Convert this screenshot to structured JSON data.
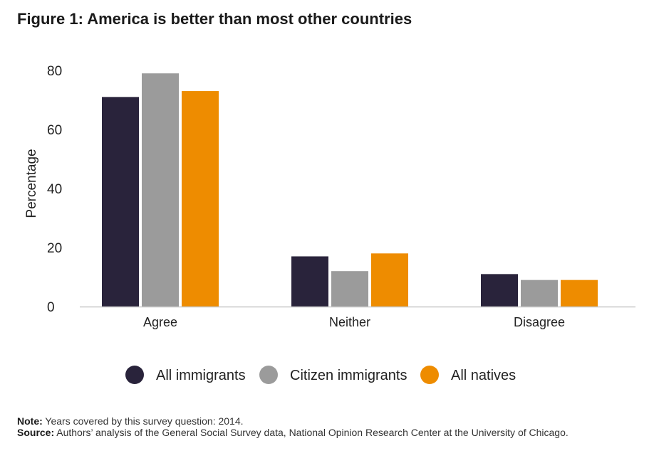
{
  "title": "Figure 1: America is better than most other countries",
  "chart_data": {
    "type": "bar",
    "title": "Figure 1: America is better than most other countries",
    "xlabel": "",
    "ylabel": "Percentage",
    "ylim": [
      0,
      80
    ],
    "yticks": [
      0,
      20,
      40,
      60,
      80
    ],
    "categories": [
      "Agree",
      "Neither",
      "Disagree"
    ],
    "series": [
      {
        "name": "All immigrants",
        "color": "#29233b",
        "values": [
          71,
          17,
          11
        ]
      },
      {
        "name": "Citizen immigrants",
        "color": "#9b9b9b",
        "values": [
          79,
          12,
          9
        ]
      },
      {
        "name": "All natives",
        "color": "#ee8c00",
        "values": [
          73,
          18,
          9
        ]
      }
    ],
    "legend_position": "bottom-center",
    "grid": false
  },
  "notes": {
    "note_label": "Note:",
    "note_text": " Years covered by this survey question: 2014.",
    "source_label": "Source:",
    "source_text": " Authors’ analysis of the General Social Survey data, National Opinion Research Center at the University of Chicago."
  }
}
